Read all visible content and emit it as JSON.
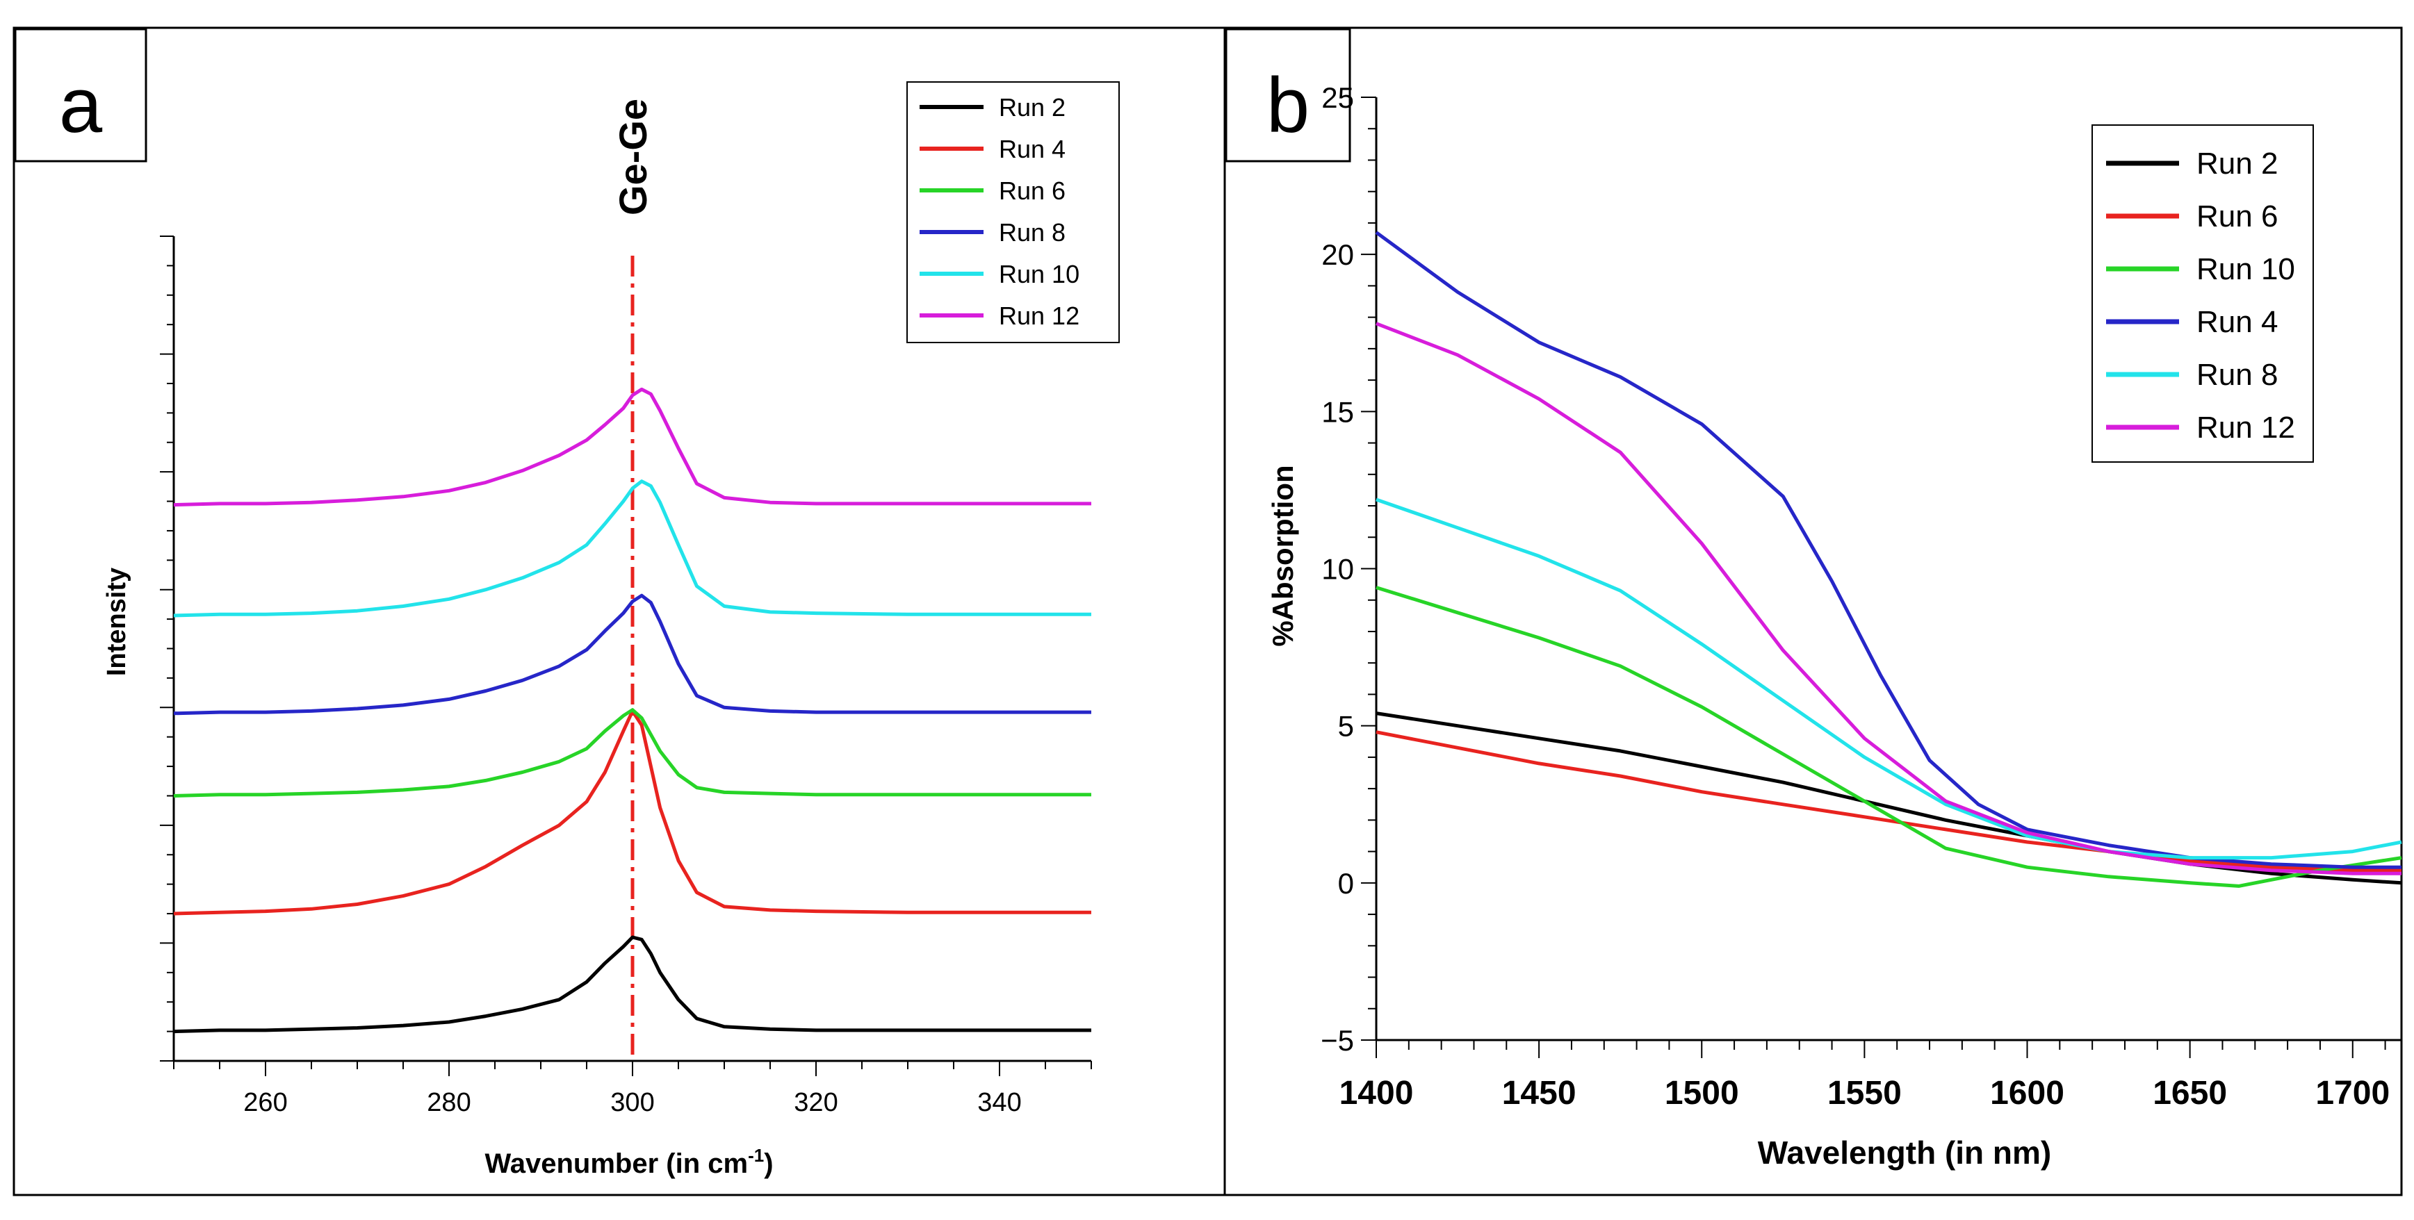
{
  "panels": {
    "a": {
      "letter": "a",
      "annotation": "Ge-Ge",
      "xlabel_main": "Wavenumber (in cm",
      "xlabel_sup": "-1",
      "xlabel_close": ")",
      "ylabel": "Intensity"
    },
    "b": {
      "letter": "b",
      "xlabel": "Wavelength (in nm)",
      "ylabel": "%Absorption"
    }
  },
  "chart_data": [
    {
      "type": "line",
      "panel": "a",
      "xlabel": "Wavenumber (in cm-1)",
      "ylabel": "Intensity",
      "xlim": [
        250,
        350
      ],
      "ylim": [
        0,
        7
      ],
      "x_ticks": [
        260,
        280,
        300,
        320,
        340
      ],
      "y_tick_labels": false,
      "grid": false,
      "legend_position": "top-right",
      "reference_line": {
        "x": 300,
        "label": "Ge-Ge",
        "color": "#e8231f",
        "style": "dash-dot"
      },
      "x": [
        250,
        255,
        260,
        265,
        270,
        275,
        280,
        284,
        288,
        292,
        295,
        297,
        299,
        300,
        301,
        302,
        303,
        305,
        307,
        310,
        315,
        320,
        330,
        340,
        350
      ],
      "series": [
        {
          "name": "Run 2",
          "color": "#000000",
          "baseline": 0.25,
          "values": [
            0.0,
            0.01,
            0.01,
            0.02,
            0.03,
            0.05,
            0.08,
            0.13,
            0.19,
            0.27,
            0.42,
            0.58,
            0.72,
            0.8,
            0.78,
            0.66,
            0.5,
            0.27,
            0.11,
            0.04,
            0.02,
            0.01,
            0.01,
            0.01,
            0.01
          ]
        },
        {
          "name": "Run 4",
          "color": "#e8231f",
          "baseline": 1.25,
          "values": [
            0.0,
            0.01,
            0.02,
            0.04,
            0.08,
            0.15,
            0.25,
            0.4,
            0.58,
            0.75,
            0.95,
            1.2,
            1.55,
            1.72,
            1.6,
            1.25,
            0.9,
            0.45,
            0.18,
            0.06,
            0.03,
            0.02,
            0.01,
            0.01,
            0.01
          ]
        },
        {
          "name": "Run 6",
          "color": "#27d427",
          "baseline": 2.25,
          "values": [
            0.0,
            0.01,
            0.01,
            0.02,
            0.03,
            0.05,
            0.08,
            0.13,
            0.2,
            0.29,
            0.4,
            0.55,
            0.68,
            0.73,
            0.66,
            0.52,
            0.38,
            0.18,
            0.07,
            0.03,
            0.02,
            0.01,
            0.01,
            0.01,
            0.01
          ]
        },
        {
          "name": "Run 8",
          "color": "#2626c8",
          "baseline": 2.95,
          "values": [
            0.0,
            0.01,
            0.01,
            0.02,
            0.04,
            0.07,
            0.12,
            0.19,
            0.28,
            0.4,
            0.54,
            0.7,
            0.85,
            0.95,
            1.0,
            0.94,
            0.78,
            0.42,
            0.15,
            0.05,
            0.02,
            0.01,
            0.01,
            0.01,
            0.01
          ]
        },
        {
          "name": "Run 10",
          "color": "#22e3ea",
          "baseline": 3.78,
          "values": [
            0.0,
            0.01,
            0.01,
            0.02,
            0.04,
            0.08,
            0.14,
            0.22,
            0.32,
            0.45,
            0.6,
            0.78,
            0.97,
            1.08,
            1.14,
            1.1,
            0.96,
            0.6,
            0.25,
            0.08,
            0.03,
            0.02,
            0.01,
            0.01,
            0.01
          ]
        },
        {
          "name": "Run 12",
          "color": "#d71ddb",
          "baseline": 4.72,
          "values": [
            0.0,
            0.01,
            0.01,
            0.02,
            0.04,
            0.07,
            0.12,
            0.19,
            0.29,
            0.42,
            0.55,
            0.68,
            0.82,
            0.93,
            0.98,
            0.94,
            0.8,
            0.48,
            0.18,
            0.06,
            0.02,
            0.01,
            0.01,
            0.01,
            0.01
          ]
        }
      ]
    },
    {
      "type": "line",
      "panel": "b",
      "xlabel": "Wavelength (in nm)",
      "ylabel": "%Absorption",
      "xlim": [
        1400,
        1715
      ],
      "ylim": [
        -5,
        25
      ],
      "x_ticks": [
        1400,
        1450,
        1500,
        1550,
        1600,
        1650,
        1700
      ],
      "y_ticks": [
        -5,
        0,
        5,
        10,
        15,
        20,
        25
      ],
      "grid": false,
      "legend_position": "top-right",
      "series": [
        {
          "name": "Run 2",
          "color": "#000000",
          "x": [
            1400,
            1425,
            1450,
            1475,
            1500,
            1525,
            1550,
            1575,
            1600,
            1625,
            1650,
            1675,
            1700,
            1715
          ],
          "values": [
            5.4,
            5.0,
            4.6,
            4.2,
            3.7,
            3.2,
            2.6,
            2.0,
            1.5,
            1.0,
            0.6,
            0.3,
            0.1,
            0.0
          ]
        },
        {
          "name": "Run 6",
          "color": "#e8231f",
          "x": [
            1400,
            1425,
            1450,
            1475,
            1500,
            1525,
            1550,
            1575,
            1600,
            1625,
            1650,
            1675,
            1700,
            1715
          ],
          "values": [
            4.8,
            4.3,
            3.8,
            3.4,
            2.9,
            2.5,
            2.1,
            1.7,
            1.3,
            1.0,
            0.7,
            0.5,
            0.4,
            0.4
          ]
        },
        {
          "name": "Run 10",
          "color": "#27d427",
          "x": [
            1400,
            1425,
            1450,
            1475,
            1500,
            1525,
            1550,
            1575,
            1600,
            1625,
            1650,
            1665,
            1690,
            1715
          ],
          "values": [
            9.4,
            8.6,
            7.8,
            6.9,
            5.6,
            4.1,
            2.6,
            1.1,
            0.5,
            0.2,
            0.0,
            -0.1,
            0.4,
            0.8
          ]
        },
        {
          "name": "Run 4",
          "color": "#2626c8",
          "x": [
            1400,
            1425,
            1450,
            1475,
            1500,
            1525,
            1540,
            1555,
            1570,
            1585,
            1600,
            1625,
            1650,
            1675,
            1700,
            1715
          ],
          "values": [
            20.7,
            18.8,
            17.2,
            16.1,
            14.6,
            12.3,
            9.6,
            6.6,
            3.9,
            2.5,
            1.7,
            1.2,
            0.8,
            0.6,
            0.5,
            0.5
          ]
        },
        {
          "name": "Run 8",
          "color": "#22e3ea",
          "x": [
            1400,
            1425,
            1450,
            1475,
            1500,
            1525,
            1550,
            1575,
            1600,
            1625,
            1650,
            1675,
            1700,
            1715
          ],
          "values": [
            12.2,
            11.3,
            10.4,
            9.3,
            7.6,
            5.8,
            4.0,
            2.5,
            1.5,
            1.0,
            0.8,
            0.8,
            1.0,
            1.3
          ]
        },
        {
          "name": "Run 12",
          "color": "#d71ddb",
          "x": [
            1400,
            1425,
            1450,
            1475,
            1500,
            1525,
            1550,
            1575,
            1600,
            1625,
            1650,
            1675,
            1700,
            1715
          ],
          "values": [
            17.8,
            16.8,
            15.4,
            13.7,
            10.8,
            7.4,
            4.6,
            2.6,
            1.6,
            1.0,
            0.6,
            0.4,
            0.3,
            0.3
          ]
        }
      ]
    }
  ]
}
